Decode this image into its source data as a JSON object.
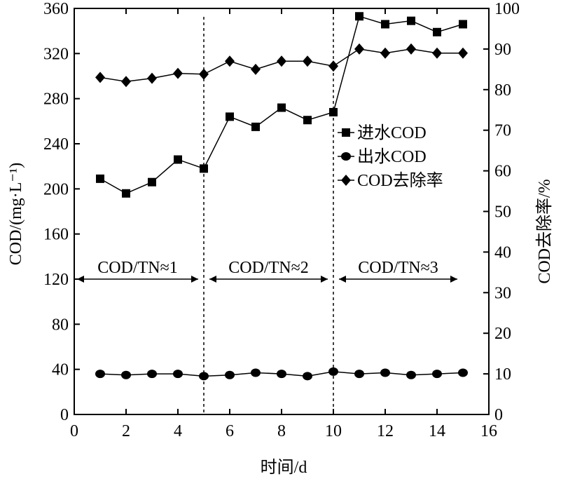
{
  "chart_data": {
    "type": "line",
    "title": "",
    "xlabel": "时间/d",
    "ylabel_left": "COD/(mg·L⁻¹)",
    "ylabel_right": "COD去除率/%",
    "xlim": [
      0,
      16
    ],
    "ylim_left": [
      0,
      360
    ],
    "ylim_right": [
      0,
      100
    ],
    "x_ticks": [
      0,
      2,
      4,
      6,
      8,
      10,
      12,
      14,
      16
    ],
    "y_ticks_left": [
      0,
      40,
      80,
      120,
      160,
      200,
      240,
      280,
      320,
      360
    ],
    "y_ticks_right": [
      0,
      10,
      20,
      30,
      40,
      50,
      60,
      70,
      80,
      90,
      100
    ],
    "grid": false,
    "legend_position": "right-middle",
    "series": [
      {
        "name": "进水COD",
        "axis": "left",
        "marker": "square",
        "x": [
          1,
          2,
          3,
          4,
          5,
          6,
          7,
          8,
          9,
          10,
          11,
          12,
          13,
          14,
          15
        ],
        "values": [
          209,
          196,
          206,
          226,
          218,
          264,
          255,
          272,
          261,
          268,
          353,
          346,
          349,
          339,
          346
        ]
      },
      {
        "name": "出水COD",
        "axis": "left",
        "marker": "circle",
        "x": [
          1,
          2,
          3,
          4,
          5,
          6,
          7,
          8,
          9,
          10,
          11,
          12,
          13,
          14,
          15
        ],
        "values": [
          36,
          35,
          36,
          36,
          34,
          35,
          37,
          36,
          34,
          38,
          36,
          37,
          35,
          36,
          37
        ]
      },
      {
        "name": "COD去除率",
        "axis": "right",
        "marker": "diamond",
        "x": [
          1,
          2,
          3,
          4,
          5,
          6,
          7,
          8,
          9,
          10,
          11,
          12,
          13,
          14,
          15
        ],
        "values": [
          83,
          82,
          82.8,
          84,
          83.8,
          87,
          85,
          87,
          87,
          85.8,
          90,
          89,
          90,
          89,
          89
        ]
      }
    ],
    "phase_boundaries": [
      5,
      10
    ],
    "phases": [
      {
        "label": "COD/TN≈1",
        "x_start": 0,
        "x_end": 5
      },
      {
        "label": "COD/TN≈2",
        "x_start": 5,
        "x_end": 10
      },
      {
        "label": "COD/TN≈3",
        "x_start": 10,
        "x_end": 15
      }
    ],
    "phase_arrow_y_left": 120
  }
}
